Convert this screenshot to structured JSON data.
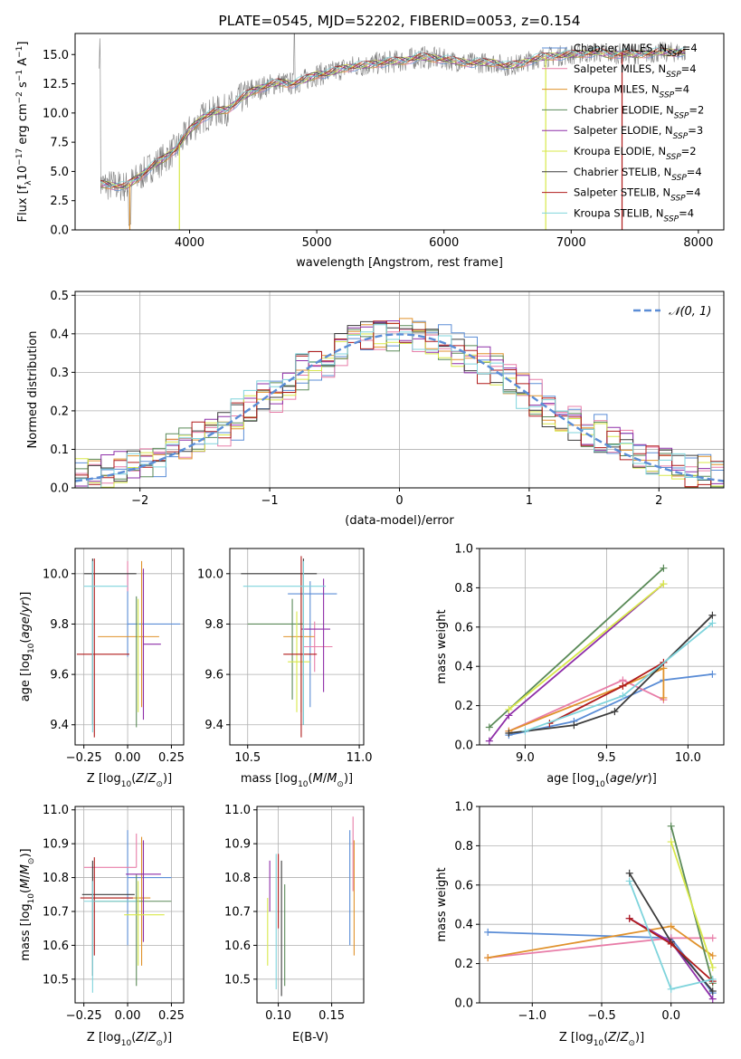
{
  "colors": {
    "Chabrier MILES": "#5b8dd6",
    "Salpeter MILES": "#e87da8",
    "Kroupa MILES": "#e0922c",
    "Chabrier ELODIE": "#5a8a58",
    "Salpeter ELODIE": "#8e2ea8",
    "Kroupa ELODIE": "#d8e84a",
    "Chabrier STELIB": "#3c3c3c",
    "Salpeter STELIB": "#b01c1c",
    "Kroupa STELIB": "#7fd4dc",
    "data": "#808080",
    "normal": "#5b8dd6"
  },
  "chart_data": [
    {
      "id": "spectrum",
      "type": "line",
      "title": "PLATE=0545, MJD=52202, FIBERID=0053, z=0.154",
      "xlabel": "wavelength [Angstrom, rest frame]",
      "ylabel": "Flux [f_λ10^-17 erg cm^-2 s^-1 A^-1]",
      "xlim": [
        3100,
        8200
      ],
      "ylim": [
        0,
        16.8
      ],
      "xticks": [
        4000,
        5000,
        6000,
        7000,
        8000
      ],
      "yticks": [
        0.0,
        2.5,
        5.0,
        7.5,
        10.0,
        12.5,
        15.0
      ],
      "legend_loc": "right",
      "legend": [
        {
          "name": "Chabrier MILES",
          "nssp": "4"
        },
        {
          "name": "Salpeter MILES",
          "nssp": "4"
        },
        {
          "name": "Kroupa MILES",
          "nssp": "4"
        },
        {
          "name": "Chabrier ELODIE",
          "nssp": "2"
        },
        {
          "name": "Salpeter ELODIE",
          "nssp": "3"
        },
        {
          "name": "Kroupa ELODIE",
          "nssp": "2"
        },
        {
          "name": "Chabrier STELIB",
          "nssp": "4"
        },
        {
          "name": "Salpeter STELIB",
          "nssp": "4"
        },
        {
          "name": "Kroupa STELIB",
          "nssp": "4"
        }
      ],
      "continuum": [
        [
          3300,
          3.9
        ],
        [
          3400,
          3.8
        ],
        [
          3500,
          3.7
        ],
        [
          3600,
          4.5
        ],
        [
          3700,
          5.4
        ],
        [
          3800,
          6.1
        ],
        [
          3900,
          7.0
        ],
        [
          4000,
          8.5
        ],
        [
          4100,
          9.6
        ],
        [
          4200,
          10.1
        ],
        [
          4300,
          10.3
        ],
        [
          4400,
          11.2
        ],
        [
          4500,
          11.9
        ],
        [
          4600,
          12.3
        ],
        [
          4700,
          12.6
        ],
        [
          4800,
          12.5
        ],
        [
          4900,
          12.8
        ],
        [
          5000,
          13.3
        ],
        [
          5100,
          13.4
        ],
        [
          5200,
          13.8
        ],
        [
          5300,
          14.0
        ],
        [
          5400,
          14.1
        ],
        [
          5500,
          14.3
        ],
        [
          5600,
          14.4
        ],
        [
          5700,
          14.5
        ],
        [
          5800,
          14.8
        ],
        [
          5900,
          14.7
        ],
        [
          6000,
          14.6
        ],
        [
          6100,
          14.4
        ],
        [
          6200,
          14.3
        ],
        [
          6300,
          14.3
        ],
        [
          6400,
          14.3
        ],
        [
          6500,
          14.0
        ],
        [
          6600,
          14.2
        ],
        [
          6700,
          14.6
        ],
        [
          6800,
          14.8
        ],
        [
          6900,
          14.9
        ],
        [
          7000,
          15.0
        ],
        [
          7100,
          15.1
        ],
        [
          7200,
          15.2
        ],
        [
          7300,
          15.0
        ],
        [
          7400,
          15.1
        ],
        [
          7500,
          15.0
        ],
        [
          7600,
          15.1
        ],
        [
          7700,
          15.2
        ],
        [
          7800,
          15.2
        ],
        [
          7900,
          15.2
        ]
      ]
    },
    {
      "id": "residuals",
      "type": "histogram",
      "xlabel": "(data-model)/error",
      "ylabel": "Normed distribution",
      "xlim": [
        -2.5,
        2.5
      ],
      "ylim": [
        0,
        0.51
      ],
      "xticks": [
        -2,
        -1,
        0,
        1,
        2
      ],
      "yticks": [
        0.0,
        0.1,
        0.2,
        0.3,
        0.4,
        0.5
      ],
      "bin_width": 0.1,
      "legend_loc": "upper right",
      "legend_normal": "𝒩(0, 1)"
    },
    {
      "id": "age_vs_Z",
      "type": "errorbar",
      "xlabel": "Z [log10(Z/Z☉)]",
      "ylabel": "age [log10(age/yr)]",
      "xlim": [
        -0.3,
        0.32
      ],
      "ylim": [
        9.32,
        10.1
      ],
      "xticks": [
        -0.25,
        0.0,
        0.25
      ],
      "yticks": [
        9.4,
        9.6,
        9.8,
        10.0
      ],
      "points": [
        {
          "series": "Chabrier MILES",
          "x": 0.0,
          "xerr": [
            0.0,
            0.0
          ],
          "y": 9.8,
          "yerr": [
            0.13,
            0.2
          ]
        },
        {
          "series": "Salpeter MILES",
          "x": 0.0,
          "xerr": [
            0.0,
            0.0
          ],
          "y": 9.93,
          "yerr": [
            0.0,
            0.0
          ]
        },
        {
          "series": "Kroupa MILES",
          "x": 0.08,
          "xerr": [
            0.0,
            0.0
          ],
          "y": 9.75,
          "yerr": [
            0.0,
            0.0
          ]
        },
        {
          "series": "Chabrier ELODIE",
          "x": 0.05,
          "xerr": [
            0.0,
            0.0
          ],
          "y": 9.81,
          "yerr": [
            0.42,
            0.1
          ]
        },
        {
          "series": "Salpeter ELODIE",
          "x": 0.09,
          "xerr": [
            0.0,
            0.0
          ],
          "y": 9.72,
          "yerr": [
            0.0,
            0.0
          ]
        },
        {
          "series": "Kroupa ELODIE",
          "x": 0.06,
          "xerr": [
            0.0,
            0.0
          ],
          "y": 9.7,
          "yerr": [
            0.0,
            0.0
          ]
        },
        {
          "series": "Chabrier STELIB",
          "x": -0.2,
          "xerr": [
            0.0,
            0.0
          ],
          "y": 10.0,
          "yerr": [
            0.0,
            0.0
          ]
        },
        {
          "series": "Salpeter STELIB",
          "x": -0.19,
          "xerr": [
            0.0,
            0.0
          ],
          "y": 9.68,
          "yerr": [
            0.0,
            0.0
          ]
        },
        {
          "series": "Kroupa STELIB",
          "x": -0.2,
          "xerr": [
            0.0,
            0.0
          ],
          "y": 9.95,
          "yerr": [
            0.0,
            0.0
          ]
        }
      ]
    },
    {
      "id": "age_vs_mass",
      "type": "errorbar",
      "xlabel": "mass [log10(M/M☉)]",
      "xlim": [
        10.42,
        11.02
      ],
      "ylim": [
        9.32,
        10.1
      ],
      "xticks": [
        10.5,
        11.0
      ],
      "yticks": [
        9.4,
        9.6,
        9.8,
        10.0
      ]
    },
    {
      "id": "weight_vs_age",
      "type": "line",
      "xlabel": "age [log10(age/yr)]",
      "ylabel": "mass weight",
      "xlim": [
        8.72,
        10.22
      ],
      "ylim": [
        0,
        1.0
      ],
      "xticks": [
        9.0,
        9.5,
        10.0
      ],
      "yticks": [
        0.0,
        0.2,
        0.4,
        0.6,
        0.8,
        1.0
      ],
      "series": [
        {
          "name": "Chabrier MILES",
          "x": [
            8.9,
            9.3,
            9.85,
            10.15
          ],
          "y": [
            0.05,
            0.12,
            0.33,
            0.36
          ]
        },
        {
          "name": "Salpeter MILES",
          "x": [
            8.9,
            9.6,
            9.85
          ],
          "y": [
            0.07,
            0.33,
            0.23
          ]
        },
        {
          "name": "Kroupa MILES",
          "x": [
            8.9,
            9.6,
            9.85,
            9.85
          ],
          "y": [
            0.07,
            0.3,
            0.39,
            0.24
          ]
        },
        {
          "name": "Chabrier ELODIE",
          "x": [
            8.78,
            9.85
          ],
          "y": [
            0.09,
            0.9
          ]
        },
        {
          "name": "Salpeter ELODIE",
          "x": [
            8.78,
            8.9,
            9.85
          ],
          "y": [
            0.02,
            0.15,
            0.82
          ]
        },
        {
          "name": "Kroupa ELODIE",
          "x": [
            8.9,
            9.85
          ],
          "y": [
            0.18,
            0.82
          ]
        },
        {
          "name": "Chabrier STELIB",
          "x": [
            8.9,
            9.3,
            9.55,
            10.15
          ],
          "y": [
            0.06,
            0.1,
            0.17,
            0.66
          ]
        },
        {
          "name": "Salpeter STELIB",
          "x": [
            9.15,
            9.6,
            9.85
          ],
          "y": [
            0.11,
            0.3,
            0.42
          ]
        },
        {
          "name": "Kroupa STELIB",
          "x": [
            9.0,
            9.6,
            10.15
          ],
          "y": [
            0.07,
            0.25,
            0.62
          ]
        }
      ]
    },
    {
      "id": "mass_vs_Z",
      "type": "errorbar",
      "xlabel": "Z [log10(Z/Z☉)]",
      "ylabel": "mass [log10(M/M☉)]",
      "xlim": [
        -0.3,
        0.32
      ],
      "ylim": [
        10.43,
        11.01
      ],
      "xticks": [
        -0.25,
        0.0,
        0.25
      ],
      "yticks": [
        10.5,
        10.6,
        10.7,
        10.8,
        10.9,
        11.0
      ]
    },
    {
      "id": "mass_vs_ebv",
      "type": "errorbar",
      "xlabel": "E(B-V)",
      "xlim": [
        0.08,
        0.18
      ],
      "ylim": [
        10.43,
        11.01
      ],
      "xticks": [
        0.1,
        0.15
      ],
      "yticks": [
        10.5,
        10.6,
        10.7,
        10.8,
        10.9,
        11.0
      ]
    },
    {
      "id": "weight_vs_Z",
      "type": "line",
      "xlabel": "Z [log10(Z/Z☉)]",
      "ylabel": "mass weight",
      "xlim": [
        -1.38,
        0.38
      ],
      "ylim": [
        0,
        1.0
      ],
      "xticks": [
        -1.0,
        -0.5,
        0.0
      ],
      "yticks": [
        0.0,
        0.2,
        0.4,
        0.6,
        0.8,
        1.0
      ],
      "series": [
        {
          "name": "Chabrier MILES",
          "x": [
            -1.32,
            0.0,
            0.3
          ],
          "y": [
            0.36,
            0.33,
            0.05
          ]
        },
        {
          "name": "Salpeter MILES",
          "x": [
            -1.32,
            0.0,
            0.3
          ],
          "y": [
            0.23,
            0.33,
            0.33
          ]
        },
        {
          "name": "Kroupa MILES",
          "x": [
            -1.32,
            0.0,
            0.3
          ],
          "y": [
            0.23,
            0.39,
            0.24
          ]
        },
        {
          "name": "Chabrier ELODIE",
          "x": [
            0.0,
            0.3
          ],
          "y": [
            0.9,
            0.1
          ]
        },
        {
          "name": "Salpeter ELODIE",
          "x": [
            -0.3,
            0.0,
            0.3
          ],
          "y": [
            0.43,
            0.31,
            0.02
          ]
        },
        {
          "name": "Kroupa ELODIE",
          "x": [
            0.0,
            0.3
          ],
          "y": [
            0.82,
            0.18
          ]
        },
        {
          "name": "Chabrier STELIB",
          "x": [
            -0.3,
            0.0,
            0.3
          ],
          "y": [
            0.66,
            0.31,
            0.06
          ]
        },
        {
          "name": "Salpeter STELIB",
          "x": [
            -0.3,
            0.0,
            0.3
          ],
          "y": [
            0.43,
            0.3,
            0.11
          ]
        },
        {
          "name": "Kroupa STELIB",
          "x": [
            -0.3,
            0.0,
            0.3
          ],
          "y": [
            0.62,
            0.07,
            0.12
          ]
        }
      ]
    }
  ]
}
